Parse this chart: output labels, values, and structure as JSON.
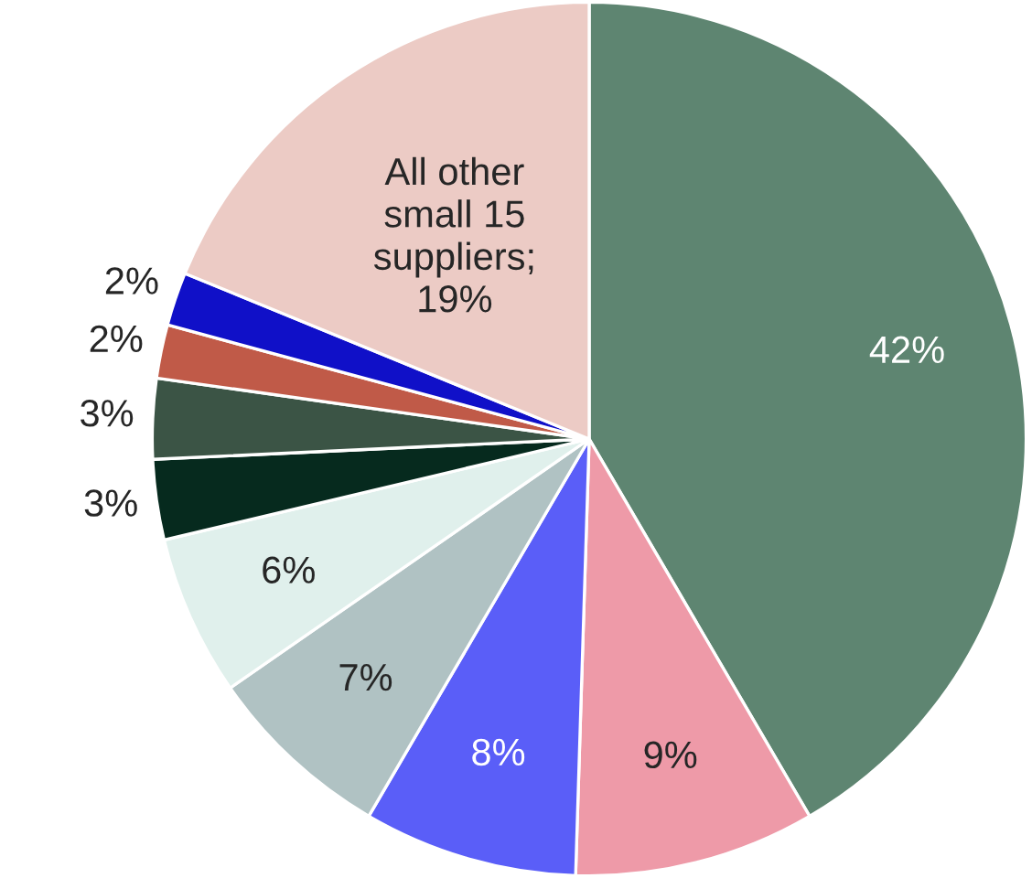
{
  "chart_data": {
    "type": "pie",
    "categories": [
      null,
      null,
      null,
      null,
      null,
      null,
      null,
      null,
      null,
      null
    ],
    "values": [
      42,
      9,
      8,
      7,
      6,
      3,
      3,
      2,
      2,
      19
    ],
    "colors": [
      "#5e8571",
      "#ee9aa8",
      "#5a5ef8",
      "#b0c2c3",
      "#e0f0ec",
      "#062a1e",
      "#3b5445",
      "#c05a48",
      "#1010c8",
      "#eccbc5"
    ],
    "value_labels": [
      "42%",
      "9%",
      "8%",
      "7%",
      "6%",
      "3%",
      "3%",
      "2%",
      "2%",
      "All other small 15 suppliers; 19%"
    ],
    "legend": false
  }
}
